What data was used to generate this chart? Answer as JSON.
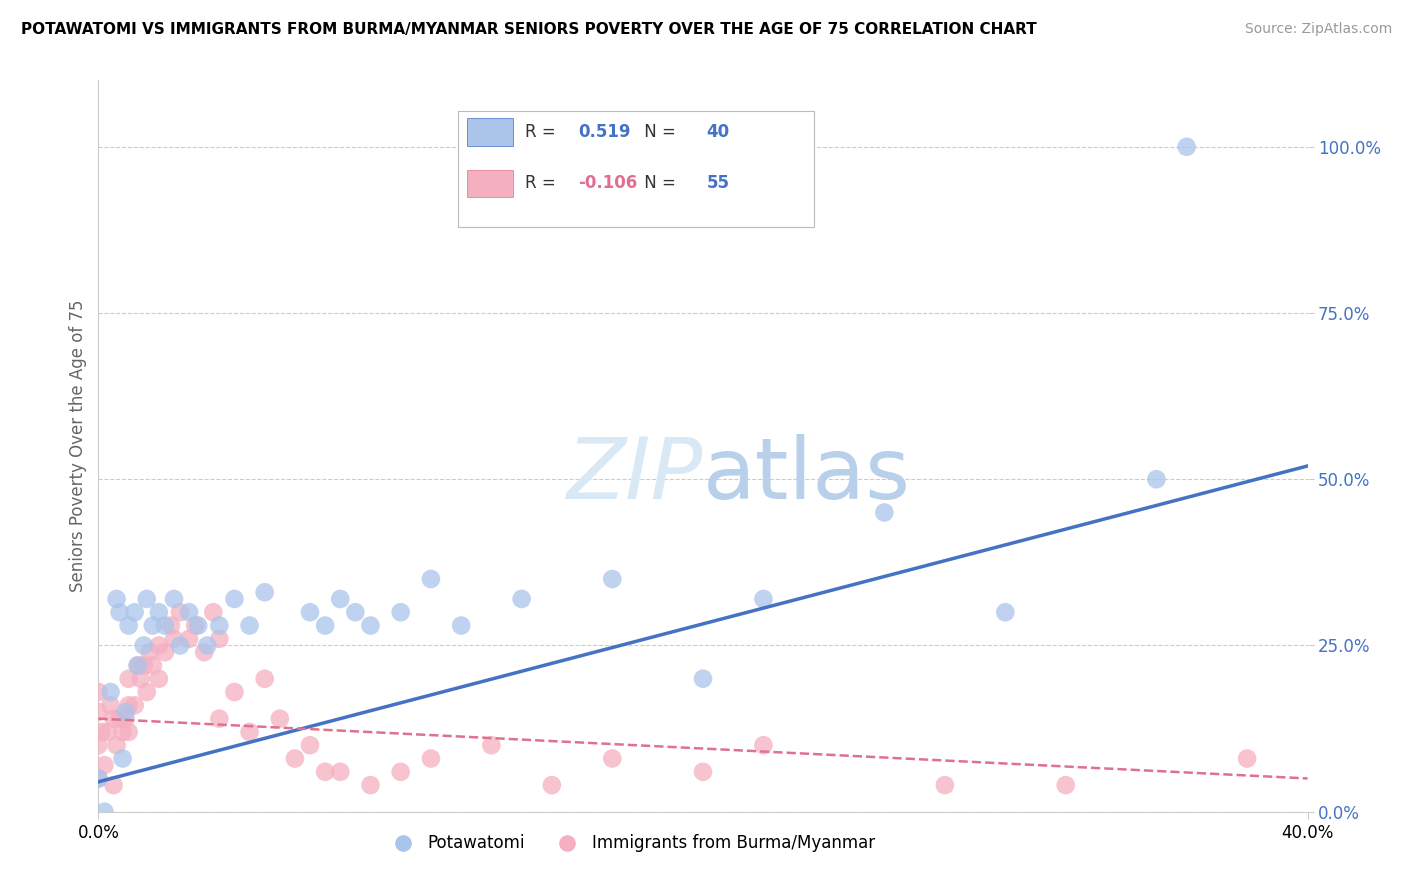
{
  "title": "POTAWATOMI VS IMMIGRANTS FROM BURMA/MYANMAR SENIORS POVERTY OVER THE AGE OF 75 CORRELATION CHART",
  "source": "Source: ZipAtlas.com",
  "ylabel": "Seniors Poverty Over the Age of 75",
  "ytick_values": [
    0.0,
    0.25,
    0.5,
    0.75,
    1.0
  ],
  "ytick_labels": [
    "0.0%",
    "25.0%",
    "50.0%",
    "75.0%",
    "100.0%"
  ],
  "xtick_values": [
    0.0,
    0.4
  ],
  "xtick_labels": [
    "0.0%",
    "40.0%"
  ],
  "xlim": [
    0.0,
    0.4
  ],
  "ylim": [
    0.0,
    1.1
  ],
  "series1_name": "Potawatomi",
  "series1_R": 0.519,
  "series1_N": 40,
  "series1_color": "#aac4ea",
  "series1_line_color": "#4472c4",
  "series1_line_x0": 0.0,
  "series1_line_y0": 0.045,
  "series1_line_x1": 0.4,
  "series1_line_y1": 0.52,
  "series1_x": [
    0.0,
    0.002,
    0.004,
    0.006,
    0.007,
    0.008,
    0.009,
    0.01,
    0.012,
    0.013,
    0.015,
    0.016,
    0.018,
    0.02,
    0.022,
    0.025,
    0.027,
    0.03,
    0.033,
    0.036,
    0.04,
    0.045,
    0.05,
    0.055,
    0.07,
    0.075,
    0.08,
    0.085,
    0.09,
    0.1,
    0.11,
    0.12,
    0.14,
    0.17,
    0.2,
    0.22,
    0.26,
    0.3,
    0.35,
    0.36
  ],
  "series1_y": [
    0.05,
    0.0,
    0.18,
    0.32,
    0.3,
    0.08,
    0.15,
    0.28,
    0.3,
    0.22,
    0.25,
    0.32,
    0.28,
    0.3,
    0.28,
    0.32,
    0.25,
    0.3,
    0.28,
    0.25,
    0.28,
    0.32,
    0.28,
    0.33,
    0.3,
    0.28,
    0.32,
    0.3,
    0.28,
    0.3,
    0.35,
    0.28,
    0.32,
    0.35,
    0.2,
    0.32,
    0.45,
    0.3,
    0.5,
    1.0
  ],
  "series2_name": "Immigrants from Burma/Myanmar",
  "series2_R": -0.106,
  "series2_N": 55,
  "series2_color": "#f4afc0",
  "series2_line_color": "#e07090",
  "series2_line_x0": 0.0,
  "series2_line_y0": 0.14,
  "series2_line_x1": 0.4,
  "series2_line_y1": 0.05,
  "series2_x": [
    0.0,
    0.0,
    0.0,
    0.0,
    0.001,
    0.002,
    0.003,
    0.004,
    0.005,
    0.005,
    0.006,
    0.007,
    0.008,
    0.009,
    0.01,
    0.01,
    0.01,
    0.012,
    0.013,
    0.014,
    0.015,
    0.016,
    0.017,
    0.018,
    0.02,
    0.02,
    0.022,
    0.024,
    0.025,
    0.027,
    0.03,
    0.032,
    0.035,
    0.038,
    0.04,
    0.04,
    0.045,
    0.05,
    0.055,
    0.06,
    0.065,
    0.07,
    0.075,
    0.08,
    0.09,
    0.1,
    0.11,
    0.13,
    0.15,
    0.17,
    0.2,
    0.22,
    0.28,
    0.32,
    0.38
  ],
  "series2_y": [
    0.05,
    0.1,
    0.15,
    0.18,
    0.12,
    0.07,
    0.12,
    0.16,
    0.04,
    0.14,
    0.1,
    0.14,
    0.12,
    0.14,
    0.16,
    0.12,
    0.2,
    0.16,
    0.22,
    0.2,
    0.22,
    0.18,
    0.24,
    0.22,
    0.25,
    0.2,
    0.24,
    0.28,
    0.26,
    0.3,
    0.26,
    0.28,
    0.24,
    0.3,
    0.26,
    0.14,
    0.18,
    0.12,
    0.2,
    0.14,
    0.08,
    0.1,
    0.06,
    0.06,
    0.04,
    0.06,
    0.08,
    0.1,
    0.04,
    0.08,
    0.06,
    0.1,
    0.04,
    0.04,
    0.08
  ],
  "legend_label1": "Potawatomi",
  "legend_label2": "Immigrants from Burma/Myanmar",
  "watermark_text": "ZIPatlas",
  "watermark_color": "#d8e8f5",
  "title_fontsize": 11,
  "source_fontsize": 10,
  "tick_fontsize": 12,
  "ylabel_fontsize": 12,
  "legend_fontsize": 12
}
